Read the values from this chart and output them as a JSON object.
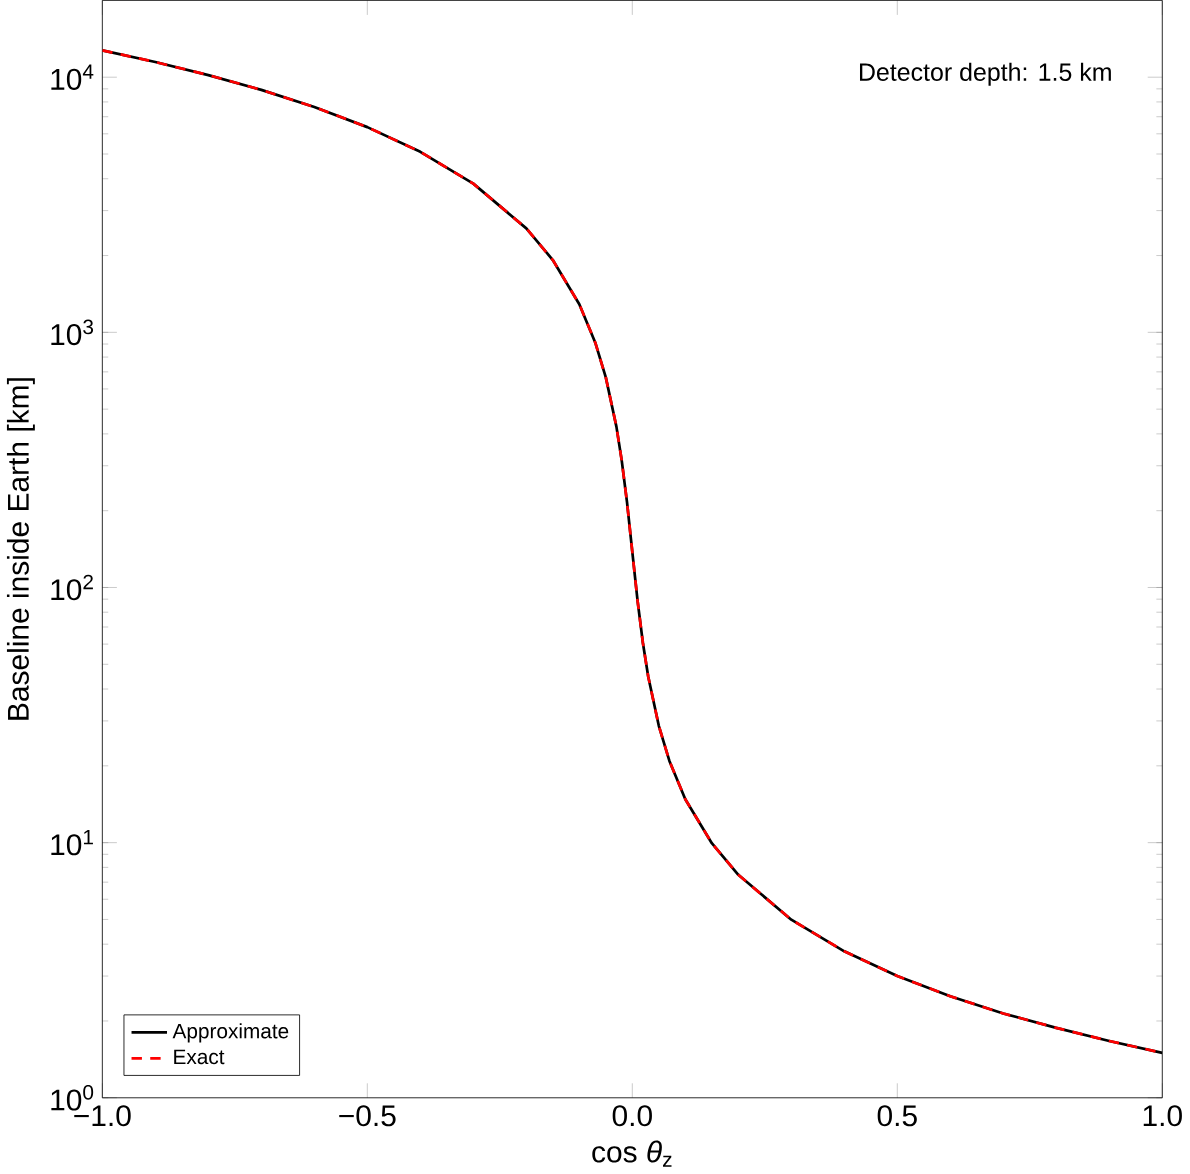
{
  "chart_data": {
    "type": "line",
    "xlabel": "cos *θ*$_{z}$",
    "ylabel": "Baseline inside Earth [km]",
    "annotations": [
      "Detector depth: 1.5 km"
    ],
    "x": [
      -1,
      -0.9,
      -0.8,
      -0.7,
      -0.6,
      -0.5,
      -0.4,
      -0.3,
      -0.2,
      -0.15,
      -0.1,
      -0.07,
      -0.05,
      -0.03,
      -0.02,
      -0.01,
      0,
      0.01,
      0.02,
      0.03,
      0.05,
      0.07,
      0.1,
      0.15,
      0.2,
      0.3,
      0.4,
      0.5,
      0.6,
      0.7,
      0.8,
      0.9,
      1
    ],
    "series": [
      {
        "name": "Approximate",
        "color": "#000000",
        "line_style": "solid",
        "values": [
          12740,
          11467,
          10193,
          8919,
          7646,
          6373,
          5099,
          3827,
          2555,
          1921,
          1289,
          913,
          666,
          427,
          315,
          216,
          138,
          88.5,
          60.6,
          44.8,
          28.7,
          20.9,
          14.8,
          9.95,
          7.48,
          4.99,
          3.75,
          3.0,
          2.5,
          2.14,
          1.88,
          1.67,
          1.5
        ]
      },
      {
        "name": "Exact",
        "color": "#ff0000",
        "line_style": "dashed",
        "values": [
          12740,
          11467,
          10193,
          8919,
          7646,
          6373,
          5099,
          3827,
          2555,
          1921,
          1289,
          913,
          666,
          427,
          315,
          216,
          138,
          88.5,
          60.6,
          44.8,
          28.7,
          20.9,
          14.8,
          9.95,
          7.48,
          4.99,
          3.75,
          3.0,
          2.5,
          2.14,
          1.88,
          1.67,
          1.5
        ]
      }
    ],
    "xlim": [
      -1,
      1
    ],
    "ylim": [
      1,
      20000
    ],
    "log": "y",
    "xticks": [
      {
        "value": -1,
        "label": "−1.0"
      },
      {
        "value": -0.5,
        "label": "−0.5"
      },
      {
        "value": 0,
        "label": "0.0"
      },
      {
        "value": 0.5,
        "label": "0.5"
      },
      {
        "value": 1,
        "label": "1.0"
      }
    ],
    "yticks": [
      {
        "value": 1,
        "label": "10$^{0}$"
      },
      {
        "value": 10,
        "label": "10$^{1}$"
      },
      {
        "value": 100,
        "label": "10$^{2}$"
      },
      {
        "value": 1000,
        "label": "10$^{3}$"
      },
      {
        "value": 10000,
        "label": "10$^{4}$"
      }
    ],
    "grid": false,
    "legend": "bottom left",
    "marker": "none"
  }
}
